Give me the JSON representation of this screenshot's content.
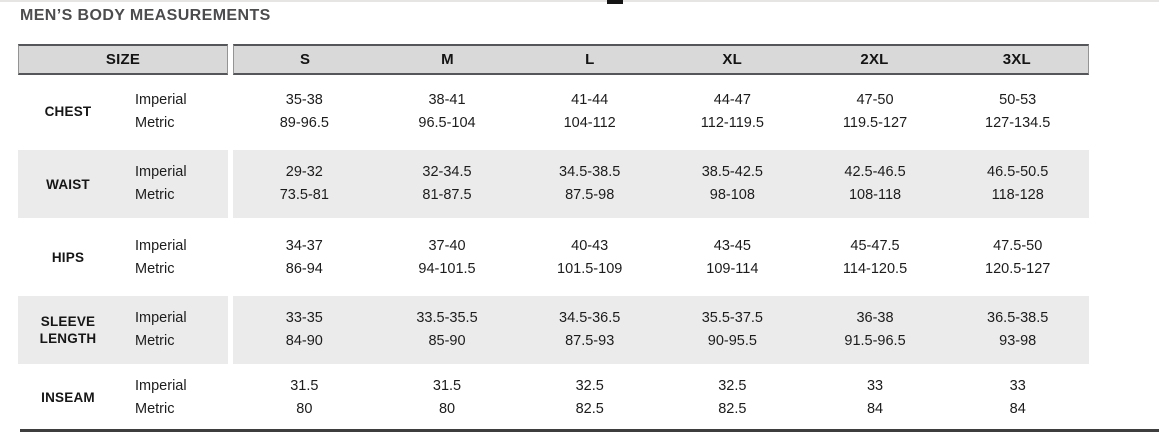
{
  "title": "MEN’S BODY MEASUREMENTS",
  "table": {
    "size_header": "SIZE",
    "sizes": [
      "S",
      "M",
      "L",
      "XL",
      "2XL",
      "3XL"
    ],
    "unit_labels": {
      "imperial": "Imperial",
      "metric": "Metric"
    },
    "rows": [
      {
        "name": "CHEST",
        "imperial": [
          "35-38",
          "38-41",
          "41-44",
          "44-47",
          "47-50",
          "50-53"
        ],
        "metric": [
          "89-96.5",
          "96.5-104",
          "104-112",
          "112-119.5",
          "119.5-127",
          "127-134.5"
        ]
      },
      {
        "name": "WAIST",
        "imperial": [
          "29-32",
          "32-34.5",
          "34.5-38.5",
          "38.5-42.5",
          "42.5-46.5",
          "46.5-50.5"
        ],
        "metric": [
          "73.5-81",
          "81-87.5",
          "87.5-98",
          "98-108",
          "108-118",
          "118-128"
        ]
      },
      {
        "name": "HIPS",
        "imperial": [
          "34-37",
          "37-40",
          "40-43",
          "43-45",
          "45-47.5",
          "47.5-50"
        ],
        "metric": [
          "86-94",
          "94-101.5",
          "101.5-109",
          "109-114",
          "114-120.5",
          "120.5-127"
        ]
      },
      {
        "name": "SLEEVE LENGTH",
        "imperial": [
          "33-35",
          "33.5-35.5",
          "34.5-36.5",
          "35.5-37.5",
          "36-38",
          "36.5-38.5"
        ],
        "metric": [
          "84-90",
          "85-90",
          "87.5-93",
          "90-95.5",
          "91.5-96.5",
          "93-98"
        ]
      },
      {
        "name": "INSEAM",
        "imperial": [
          "31.5",
          "31.5",
          "32.5",
          "32.5",
          "33",
          "33"
        ],
        "metric": [
          "80",
          "80",
          "82.5",
          "82.5",
          "84",
          "84"
        ]
      }
    ]
  },
  "colors": {
    "header_bg": "#d9d9d9",
    "header_border": "#55565a",
    "shaded_row_bg": "#ebebeb",
    "text": "#1c1c1c",
    "title": "#4c4c4e",
    "rule": "#3e3e3e"
  }
}
